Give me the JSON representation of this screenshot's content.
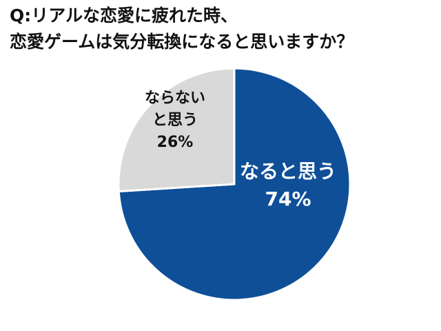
{
  "title_lines": [
    "Q:リアルな恋愛に疲れた時、",
    "恋愛ゲームは気分転換になると思いますか？"
  ],
  "chart_data": {
    "type": "pie",
    "start_angle_deg": 0,
    "direction": "clockwise",
    "slices": [
      {
        "name": "なると思う",
        "value": 74,
        "value_label": "74%",
        "label_lines": [
          "なると思う"
        ],
        "color": "#0e4f98",
        "text_color": "#ffffff"
      },
      {
        "name": "ならないと思う",
        "value": 26,
        "value_label": "26%",
        "label_lines": [
          "ならない",
          "と思う"
        ],
        "color": "#d9d9d9",
        "text_color": "#111111"
      }
    ],
    "stroke_color": "#ffffff"
  }
}
